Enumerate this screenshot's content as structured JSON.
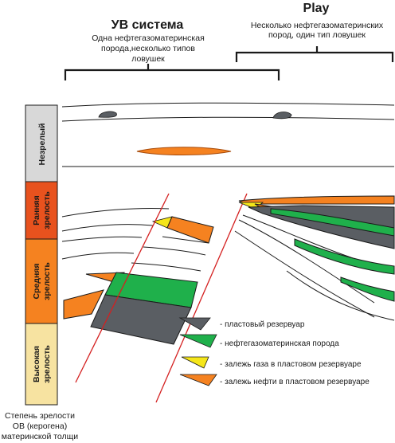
{
  "left_system": {
    "title": "УВ система",
    "description_line1": "Одна нефтегазоматеринская",
    "description_line2": "порода,несколько типов",
    "description_line3": "ловушек"
  },
  "right_system": {
    "title": "Play",
    "description_line1": "Несколько  нефтегазоматеринских",
    "description_line2": "пород, один тип ловушек"
  },
  "maturity_scale": {
    "zones": [
      {
        "label": "Незрелый",
        "color": "#d8d8d8"
      },
      {
        "label_line1": "Ранняя",
        "label_line2": "зрелость",
        "color": "#e8521e"
      },
      {
        "label_line1": "Средняя",
        "label_line2": "зрелость",
        "color": "#f58220"
      },
      {
        "label_line1": "Высокая",
        "label_line2": "зрелость",
        "color": "#f7e3a1"
      }
    ],
    "caption_line1": "Степень зрелости",
    "caption_line2": "ОВ (керогена)",
    "caption_line3": "материнской толщи"
  },
  "legend": [
    {
      "label": "- пластовый резервуар",
      "color": "#5a5e63"
    },
    {
      "label": "- нефтегазоматеринская порода",
      "color": "#1fb04b"
    },
    {
      "label": "- залежь газа в пластовом резервуаре",
      "color": "#f5e61a"
    },
    {
      "label": "- залежь нефти в пластовом резервуаре",
      "color": "#f58220"
    }
  ],
  "colors": {
    "fault": "#d42020",
    "line": "#1a1a1a"
  }
}
